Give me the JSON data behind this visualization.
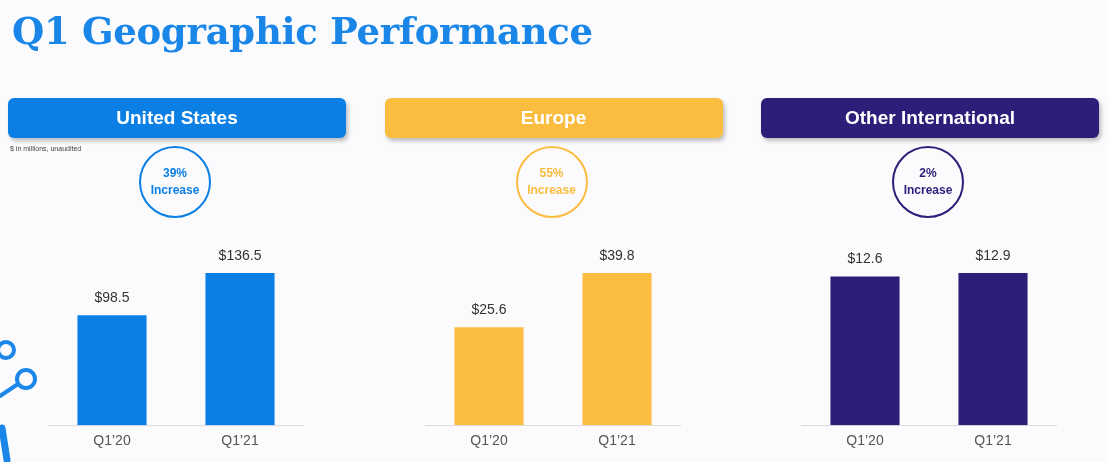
{
  "chart_data": [
    {
      "type": "other",
      "title": "Q1 Geographic Performance",
      "annotations": [
        "$ in millions, unaudited"
      ]
    },
    {
      "type": "bar",
      "title": "United States",
      "categories": [
        "Q1’20",
        "Q1’21"
      ],
      "values": [
        98.5,
        136.5
      ],
      "value_labels": [
        "$98.5",
        "$136.5"
      ],
      "color": "#0b7fe4",
      "tick_labels": "x",
      "annotations": [
        "39% Increase"
      ]
    },
    {
      "type": "bar",
      "title": "Europe",
      "categories": [
        "Q1’20",
        "Q1’21"
      ],
      "values": [
        25.6,
        39.8
      ],
      "value_labels": [
        "$25.6",
        "$39.8"
      ],
      "color": "#fbbd40",
      "tick_labels": "x",
      "annotations": [
        "55% Increase"
      ]
    },
    {
      "type": "bar",
      "title": "Other International",
      "categories": [
        "Q1’20",
        "Q1’21"
      ],
      "values": [
        12.6,
        12.9
      ],
      "value_labels": [
        "$12.6",
        "$12.9"
      ],
      "color": "#2d1e7a",
      "tick_labels": "x",
      "annotations": [
        "2% Increase"
      ]
    }
  ]
}
